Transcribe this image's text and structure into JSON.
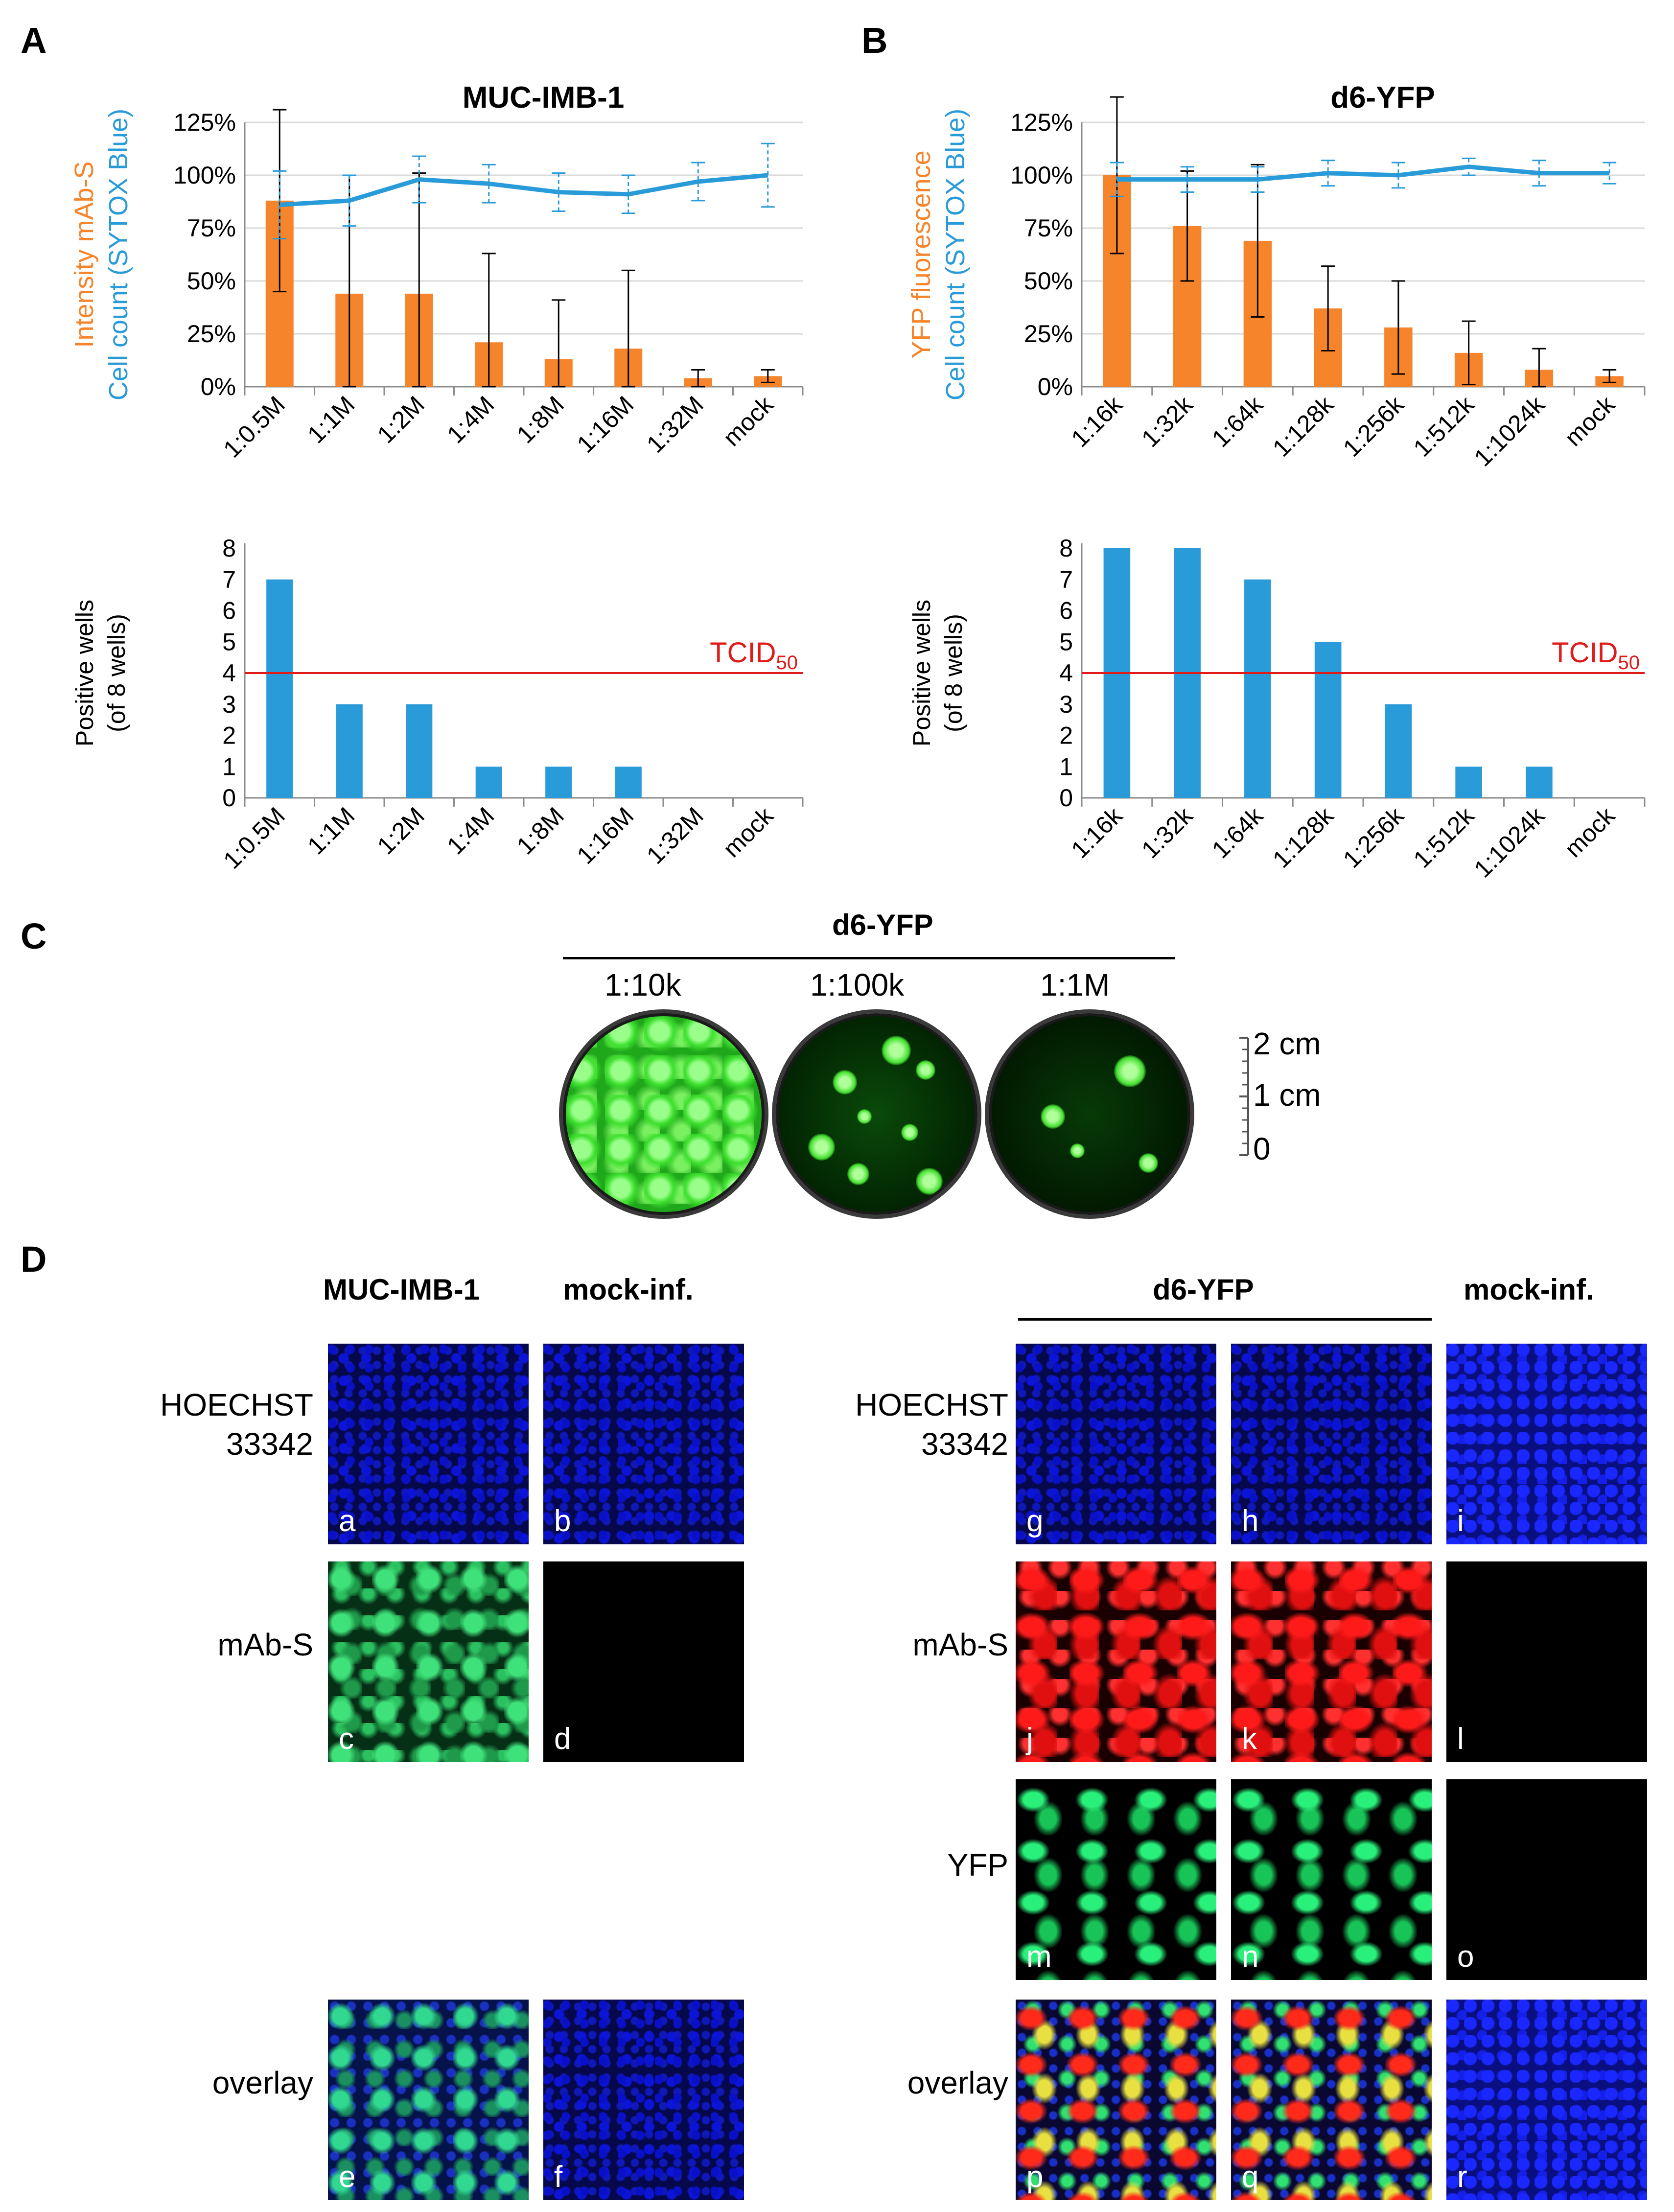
{
  "panel_labels": {
    "a": "A",
    "b": "B",
    "c": "C",
    "d": "D"
  },
  "chart_data": [
    {
      "type": "bar",
      "panel": "A-top",
      "title": "MUC-IMB-1",
      "categories": [
        "1:0.5M",
        "1:1M",
        "1:2M",
        "1:4M",
        "1:8M",
        "1:16M",
        "1:32M",
        "mock"
      ],
      "ylabel_1": "Intensity mAb-S",
      "ylabel_2": "Cell count (SYTOX Blue)",
      "yticks": [
        "0%",
        "25%",
        "50%",
        "75%",
        "100%",
        "125%"
      ],
      "ylim": [
        0,
        125
      ],
      "series": [
        {
          "name": "Intensity mAb-S",
          "type": "bar",
          "color": "#f5842b",
          "values": [
            88,
            44,
            44,
            21,
            13,
            18,
            4,
            5
          ],
          "err": [
            43,
            56,
            57,
            42,
            28,
            37,
            4,
            3
          ]
        },
        {
          "name": "Cell count (SYTOX Blue)",
          "type": "line",
          "color": "#2a9bd9",
          "values": [
            86,
            88,
            98,
            96,
            92,
            91,
            97,
            100
          ],
          "err": [
            16,
            12,
            11,
            9,
            9,
            9,
            9,
            15
          ]
        }
      ]
    },
    {
      "type": "bar",
      "panel": "B-top",
      "title": "d6-YFP",
      "categories": [
        "1:16k",
        "1:32k",
        "1:64k",
        "1:128k",
        "1:256k",
        "1:512k",
        "1:1024k",
        "mock"
      ],
      "ylabel_1": "YFP fluorescence",
      "ylabel_2": "Cell count (SYTOX Blue)",
      "yticks": [
        "0%",
        "25%",
        "50%",
        "75%",
        "100%",
        "125%"
      ],
      "ylim": [
        0,
        125
      ],
      "series": [
        {
          "name": "YFP fluorescence",
          "type": "bar",
          "color": "#f5842b",
          "values": [
            100,
            76,
            69,
            37,
            28,
            16,
            8,
            5
          ],
          "err": [
            37,
            26,
            36,
            20,
            22,
            15,
            10,
            3
          ]
        },
        {
          "name": "Cell count (SYTOX Blue)",
          "type": "line",
          "color": "#2a9bd9",
          "values": [
            98,
            98,
            98,
            101,
            100,
            104,
            101,
            101
          ],
          "err": [
            8,
            6,
            6,
            6,
            6,
            4,
            6,
            5
          ]
        }
      ]
    },
    {
      "type": "bar",
      "panel": "A-bottom",
      "categories": [
        "1:0.5M",
        "1:1M",
        "1:2M",
        "1:4M",
        "1:8M",
        "1:16M",
        "1:32M",
        "mock"
      ],
      "ylabel_1": "Positive wells",
      "ylabel_2": "(of 8 wells)",
      "yticks": [
        "0",
        "1",
        "2",
        "3",
        "4",
        "5",
        "6",
        "7",
        "8"
      ],
      "ylim": [
        0,
        8
      ],
      "threshold": {
        "value": 4,
        "label": "TCID",
        "sub": "50",
        "color": "#e11a1a"
      },
      "series": [
        {
          "type": "bar",
          "color": "#2a9bd9",
          "values": [
            7,
            3,
            3,
            1,
            1,
            1,
            0,
            0
          ]
        }
      ]
    },
    {
      "type": "bar",
      "panel": "B-bottom",
      "categories": [
        "1:16k",
        "1:32k",
        "1:64k",
        "1:128k",
        "1:256k",
        "1:512k",
        "1:1024k",
        "mock"
      ],
      "ylabel_1": "Positive wells",
      "ylabel_2": "(of 8 wells)",
      "yticks": [
        "0",
        "1",
        "2",
        "3",
        "4",
        "5",
        "6",
        "7",
        "8"
      ],
      "ylim": [
        0,
        8
      ],
      "threshold": {
        "value": 4,
        "label": "TCID",
        "sub": "50",
        "color": "#e11a1a"
      },
      "series": [
        {
          "type": "bar",
          "color": "#2a9bd9",
          "values": [
            8,
            8,
            7,
            5,
            3,
            1,
            1,
            0
          ]
        }
      ]
    }
  ],
  "panel_c": {
    "title": "d6-YFP",
    "dilutions": [
      "1:10k",
      "1:100k",
      "1:1M"
    ],
    "scale": [
      "2 cm",
      "1 cm",
      "0"
    ]
  },
  "panel_d": {
    "left_headers": [
      "MUC-IMB-1",
      "mock-inf."
    ],
    "right_headers": [
      "d6-YFP",
      "mock-inf."
    ],
    "left_rows": [
      {
        "label_lines": [
          "HOECHST",
          "33342"
        ],
        "letters": [
          "a",
          "b"
        ]
      },
      {
        "label_lines": [
          "mAb-S"
        ],
        "letters": [
          "c",
          "d"
        ]
      },
      {
        "label_lines": [
          "overlay"
        ],
        "letters": [
          "e",
          "f"
        ]
      }
    ],
    "right_rows": [
      {
        "label_lines": [
          "HOECHST",
          "33342"
        ],
        "letters": [
          "g",
          "h",
          "i"
        ]
      },
      {
        "label_lines": [
          "mAb-S"
        ],
        "letters": [
          "j",
          "k",
          "l"
        ]
      },
      {
        "label_lines": [
          "YFP"
        ],
        "letters": [
          "m",
          "n",
          "o"
        ]
      },
      {
        "label_lines": [
          "overlay"
        ],
        "letters": [
          "p",
          "q",
          "r"
        ]
      }
    ]
  }
}
